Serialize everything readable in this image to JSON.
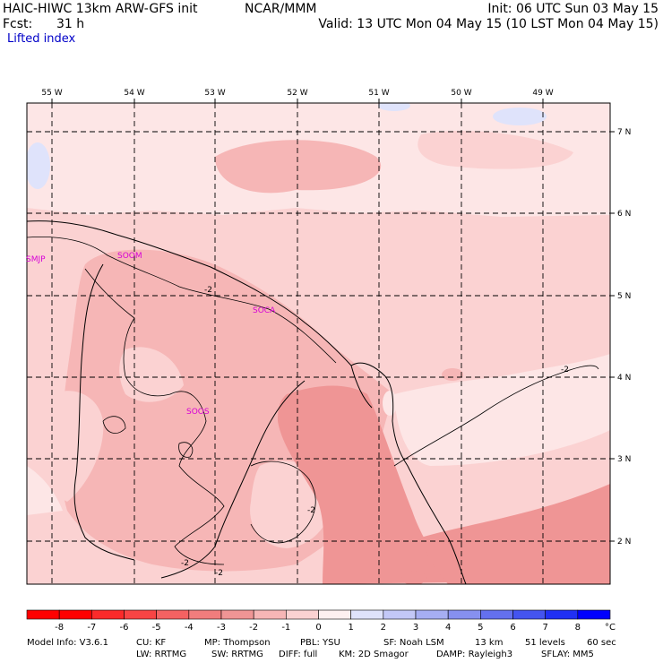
{
  "header": {
    "model_title": "HAIC-HIWC 13km ARW-GFS init",
    "org": "NCAR/MMM",
    "init": "Init: 06 UTC Sun 03 May 15",
    "fcst_label": "Fcst:",
    "fcst_hours": "31 h",
    "valid": "Valid: 13 UTC Mon 04 May 15 (10 LST Mon 04 May 15)",
    "field": "Lifted index"
  },
  "map": {
    "lon_labels": [
      "55 W",
      "54 W",
      "53 W",
      "52 W",
      "51 W",
      "50 W",
      "49 W"
    ],
    "lat_labels": [
      "7 N",
      "6 N",
      "5 N",
      "4 N",
      "3 N",
      "2 N"
    ],
    "stations": [
      "SMJP",
      "SOCA",
      "SOOM",
      "SOOS"
    ],
    "contour_labels": [
      "-2",
      "-2",
      "-2",
      "-2",
      "-2"
    ],
    "colors": {
      "light_pink": "#fbd2d2",
      "mid_pink": "#f6b6b6",
      "salmon": "#ef9595",
      "blue_tint": "#dfe3fb",
      "station": "#d600d6"
    }
  },
  "colorbar": {
    "ticks": [
      "-8",
      "-7",
      "-6",
      "-5",
      "-4",
      "-3",
      "-2",
      "-1",
      "0",
      "1",
      "2",
      "3",
      "4",
      "5",
      "6",
      "7",
      "8"
    ],
    "unit": "°C",
    "colors": [
      "#ff0000",
      "#fb2a2a",
      "#f84444",
      "#f46262",
      "#f17d7d",
      "#ef9595",
      "#f6b6b6",
      "#fbd2d2",
      "#fdf0f0",
      "#dfe3fb",
      "#c3c8f7",
      "#a6aef3",
      "#8690ef",
      "#6470ee",
      "#4454ef",
      "#2030f4",
      "#0000ff"
    ]
  },
  "footer": {
    "line1": [
      "Model Info: V3.6.1",
      "CU: KF",
      "MP: Thompson",
      "PBL: YSU",
      "SF: Noah LSM",
      "13 km",
      "51 levels",
      "60 sec"
    ],
    "line2": [
      "LW: RRTMG",
      "SW: RRTMG",
      "DIFF: full",
      "KM: 2D Smagor",
      "DAMP: Rayleigh3",
      "SFLAY: MM5"
    ]
  }
}
